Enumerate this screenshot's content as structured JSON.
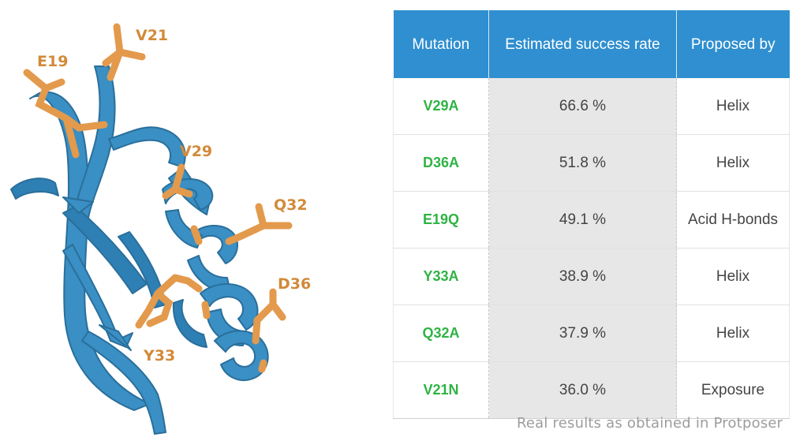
{
  "colors": {
    "ribbon": "#3a8fc4",
    "ribbon_dark": "#2a6f9b",
    "sidechain": "#e39a4c",
    "label": "#d28a3a",
    "header_bg": "#2f8fd0",
    "rate_bg": "#e7e7e7",
    "mutation_text": "#2fb344"
  },
  "residue_labels": [
    "V21",
    "E19",
    "V29",
    "Q32",
    "D36",
    "Y33"
  ],
  "table": {
    "headers": [
      "Mutation",
      "Estimated success rate",
      "Proposed by"
    ],
    "rows": [
      {
        "mutation": "V29A",
        "rate": "66.6 %",
        "proposed_by": "Helix"
      },
      {
        "mutation": "D36A",
        "rate": "51.8 %",
        "proposed_by": "Helix"
      },
      {
        "mutation": "E19Q",
        "rate": "49.1 %",
        "proposed_by": "Acid H-bonds"
      },
      {
        "mutation": "Y33A",
        "rate": "38.9 %",
        "proposed_by": "Helix"
      },
      {
        "mutation": "Q32A",
        "rate": "37.9 %",
        "proposed_by": "Helix"
      },
      {
        "mutation": "V21N",
        "rate": "36.0 %",
        "proposed_by": "Exposure"
      }
    ]
  },
  "caption": "Real results as obtained in Protposer"
}
